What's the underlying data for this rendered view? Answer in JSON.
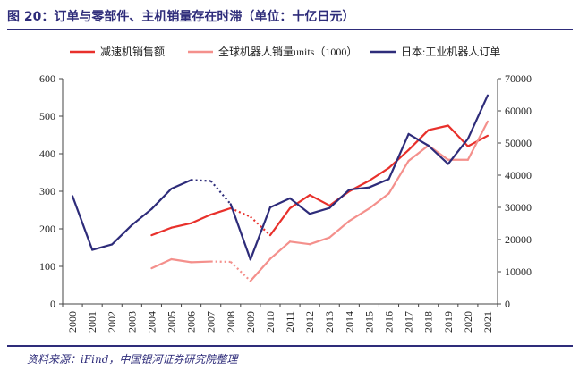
{
  "page": {
    "title": "图 20：订单与零部件、主机销量存在时滞（单位：十亿日元）",
    "source": "资料来源：iFind，中国银河证券研究院整理"
  },
  "chart_data": {
    "type": "line",
    "title": "图 20：订单与零部件、主机销量存在时滞（单位：十亿日元）",
    "categories": [
      "2000",
      "2001",
      "2002",
      "2003",
      "2004",
      "2005",
      "2006",
      "2007",
      "2008",
      "2009",
      "2010",
      "2011",
      "2012",
      "2013",
      "2014",
      "2015",
      "2016",
      "2017",
      "2018",
      "2019",
      "2020",
      "2021"
    ],
    "left_axis": {
      "ylim": [
        0,
        600
      ],
      "ticks": [
        0,
        100,
        200,
        300,
        400,
        500,
        600
      ]
    },
    "right_axis": {
      "ylim": [
        0,
        70000
      ],
      "ticks": [
        0,
        10000,
        20000,
        30000,
        40000,
        50000,
        60000,
        70000
      ]
    },
    "legend_position": "top",
    "grid": false,
    "series": [
      {
        "name": "减速机销售额",
        "axis": "left",
        "color": "#e8302b",
        "values": [
          null,
          null,
          null,
          null,
          183,
          203,
          215,
          238,
          255,
          232,
          183,
          255,
          290,
          262,
          300,
          328,
          362,
          410,
          463,
          475,
          420,
          448
        ],
        "dashed_segments": [
          [
            8,
            10
          ]
        ]
      },
      {
        "name": "全球机器人销量units（1000）",
        "axis": "left",
        "color": "#f4908c",
        "values": [
          null,
          null,
          null,
          null,
          95,
          119,
          111,
          113,
          112,
          61,
          120,
          166,
          159,
          177,
          221,
          254,
          294,
          381,
          422,
          384,
          384,
          486
        ],
        "dashed_segments": [
          [
            7,
            9
          ]
        ]
      },
      {
        "name": "日本:工业机器人订单",
        "axis": "right",
        "color": "#2e2c7a",
        "values": [
          33500,
          16800,
          18500,
          24500,
          29500,
          35800,
          38500,
          38200,
          31000,
          13800,
          30000,
          32800,
          28000,
          29800,
          35500,
          36200,
          38800,
          52800,
          49200,
          43500,
          51300,
          64800
        ],
        "dashed_segments": [
          [
            6,
            8
          ]
        ]
      }
    ]
  }
}
